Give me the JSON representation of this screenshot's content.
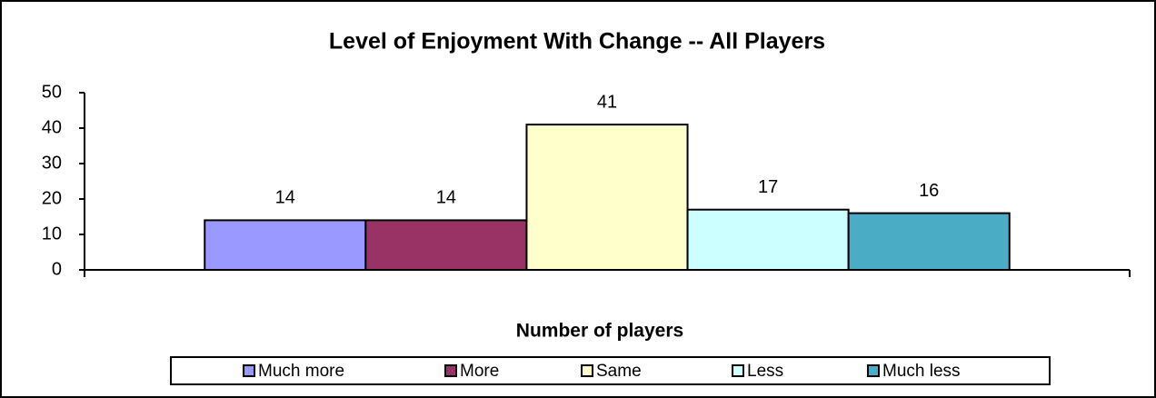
{
  "chart_data": {
    "type": "bar",
    "title": "Level of Enjoyment With Change -- All Players",
    "x_label": "Number of players",
    "categories": [
      null
    ],
    "series": [
      {
        "name": "Much more",
        "color": "#9999ff",
        "values": [
          14
        ]
      },
      {
        "name": "More",
        "color": "#993366",
        "values": [
          14
        ]
      },
      {
        "name": "Same",
        "color": "#ffffcc",
        "values": [
          41
        ]
      },
      {
        "name": "Less",
        "color": "#ccffff",
        "values": [
          17
        ]
      },
      {
        "name": "Much less",
        "color": "#4bacc6",
        "values": [
          16
        ]
      }
    ],
    "ylim": [
      0,
      50
    ],
    "yticks": [
      0,
      10,
      20,
      30,
      40,
      50
    ],
    "grid": false,
    "legend": "bottom"
  }
}
